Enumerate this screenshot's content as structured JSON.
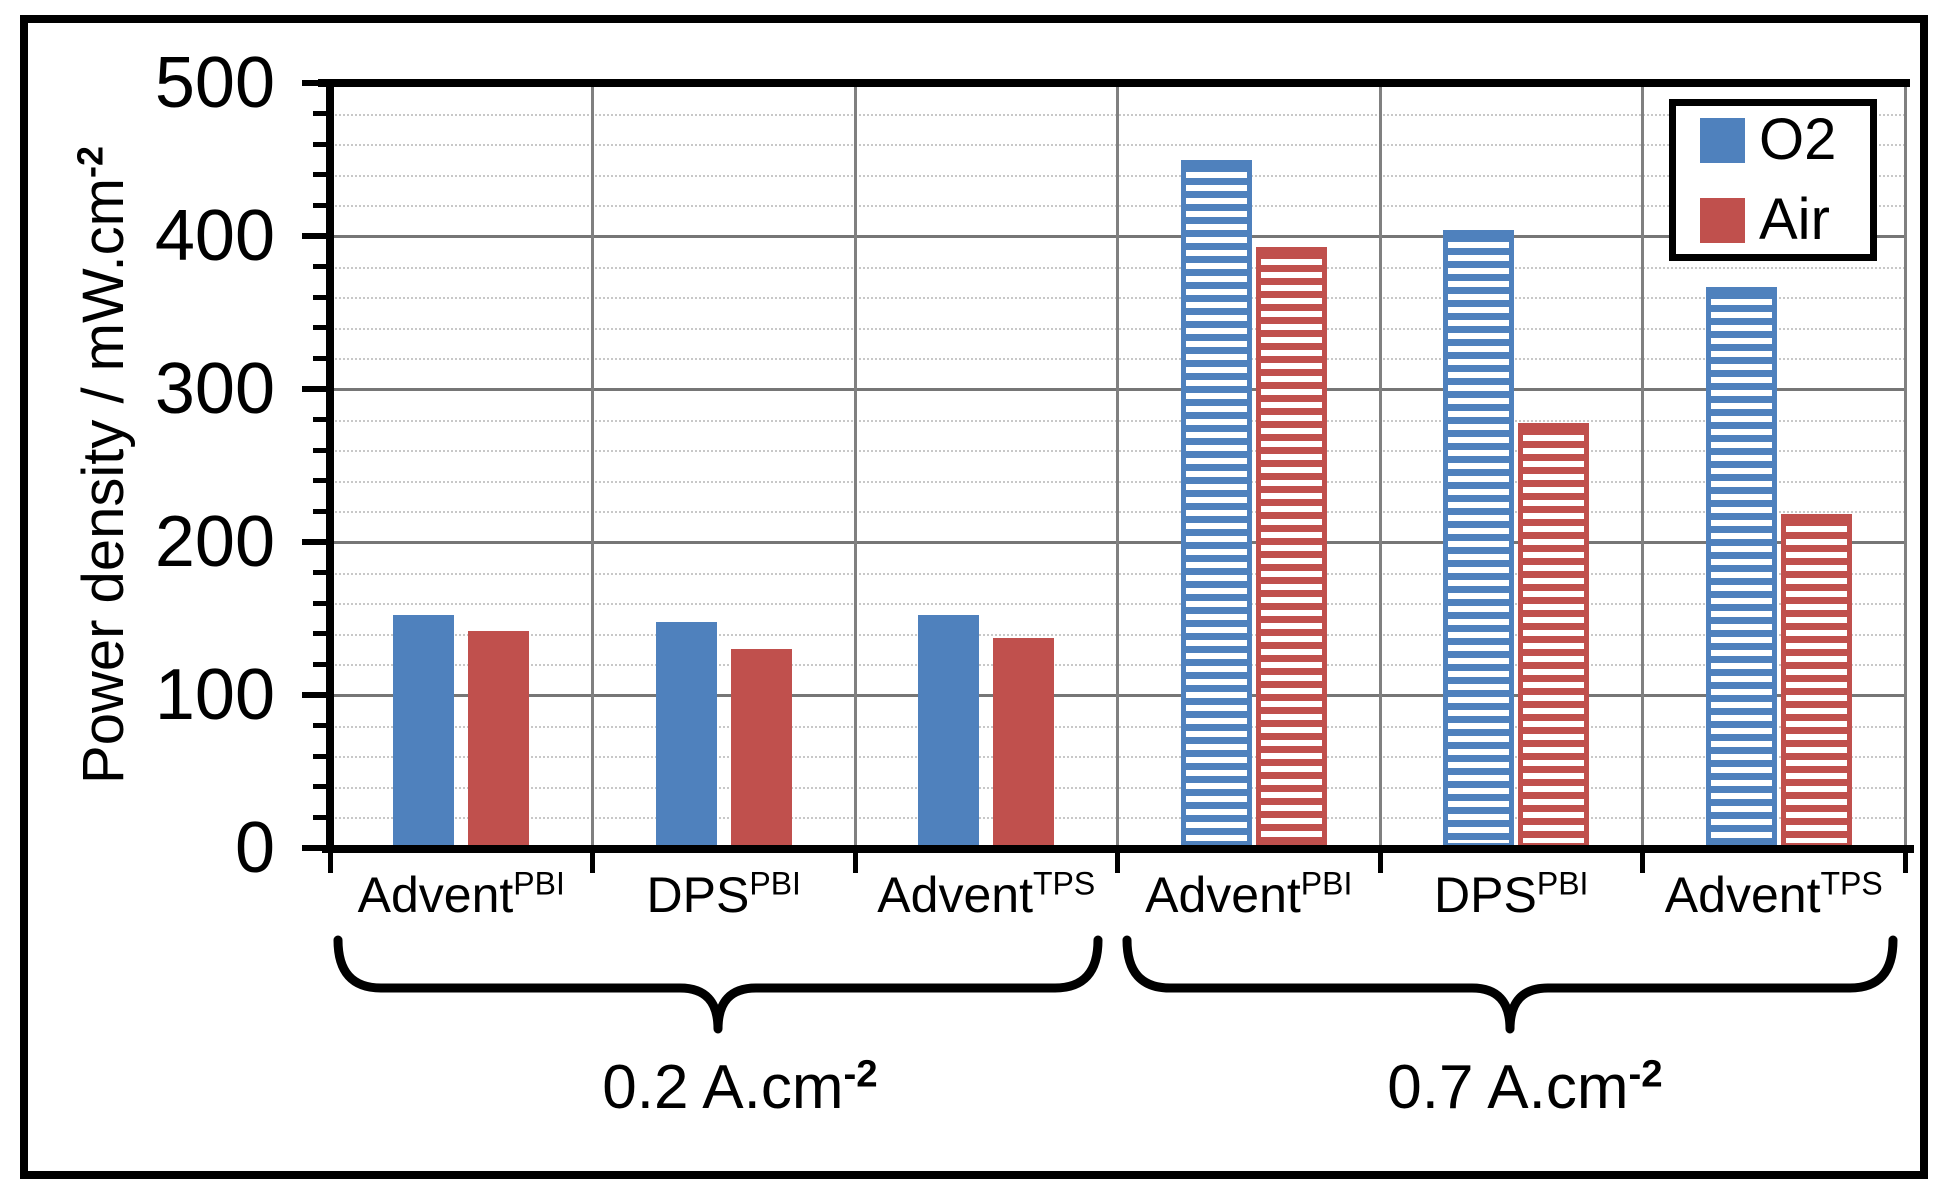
{
  "chart_data": {
    "type": "bar",
    "title": "",
    "ylabel": {
      "text": "Power density / mW.cm",
      "sup": "-2"
    },
    "ylim": [
      0,
      500
    ],
    "ytick_step": 100,
    "minor_step": 20,
    "grid": "on",
    "ytick_labels": [
      "0",
      "100",
      "200",
      "300",
      "400",
      "500"
    ],
    "legend_position": "top-right",
    "legend": [
      {
        "label": "O2",
        "color": "#4F81BD"
      },
      {
        "label": "Air",
        "color": "#C0504D"
      }
    ],
    "colors": {
      "major_grid": "#767676",
      "minor_grid": "#c8c8c8",
      "axis": "#000000",
      "o2_blue": "#4F81BD",
      "air_red": "#C0504D"
    },
    "groups": [
      {
        "label": {
          "text": "0.2 A.cm",
          "sup": "-2"
        },
        "bar_style": "solid",
        "categories": [
          {
            "base": "Advent",
            "sup": "PBI"
          },
          {
            "base": "DPS",
            "sup": "PBI"
          },
          {
            "base": "Advent",
            "sup": "TPS"
          }
        ],
        "series": [
          {
            "name": "O2",
            "values": [
              152,
              148,
              152
            ]
          },
          {
            "name": "Air",
            "values": [
              142,
              130,
              137
            ]
          }
        ]
      },
      {
        "label": {
          "text": "0.7 A.cm",
          "sup": "-2"
        },
        "bar_style": "hatched",
        "categories": [
          {
            "base": "Advent",
            "sup": "PBI"
          },
          {
            "base": "DPS",
            "sup": "PBI"
          },
          {
            "base": "Advent",
            "sup": "TPS"
          }
        ],
        "series": [
          {
            "name": "O2",
            "values": [
              450,
              404,
              367
            ]
          },
          {
            "name": "Air",
            "values": [
              393,
              278,
              218
            ]
          }
        ]
      }
    ]
  }
}
